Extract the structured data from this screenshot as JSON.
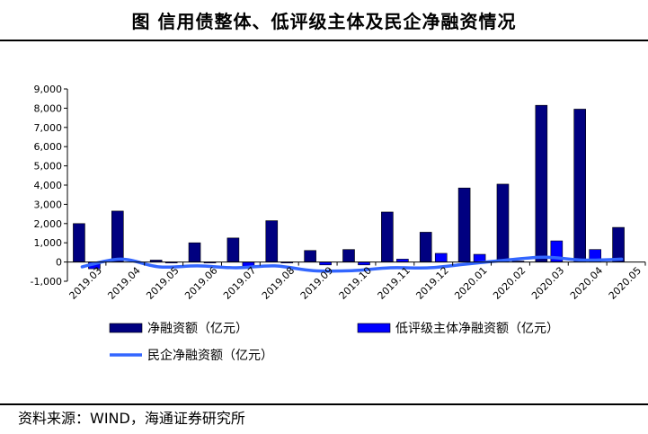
{
  "title": "图  信用债整体、低评级主体及民企净融资情况",
  "source": "资料来源：WIND，海通证券研究所",
  "chart_data": {
    "type": "bar",
    "categories": [
      "2019.03",
      "2019.04",
      "2019.05",
      "2019.06",
      "2019.07",
      "2019.08",
      "2019.09",
      "2019.10",
      "2019.11",
      "2019.12",
      "2020.01",
      "2020.02",
      "2020.03",
      "2020.04",
      "2020.05"
    ],
    "series": [
      {
        "name": "净融资额（亿元）",
        "kind": "bar",
        "color": "#000080",
        "values": [
          2000,
          2650,
          100,
          1000,
          1250,
          2150,
          600,
          650,
          2600,
          1550,
          3850,
          4050,
          8150,
          7950,
          1800
        ]
      },
      {
        "name": "低评级主体净融资额（亿元）",
        "kind": "bar",
        "color": "#0000ff",
        "values": [
          -350,
          0,
          -50,
          -50,
          -300,
          -50,
          -150,
          -150,
          150,
          450,
          400,
          50,
          1100,
          650,
          0
        ]
      },
      {
        "name": "民企净融资额（亿元）",
        "kind": "line",
        "color": "#3366ff",
        "values": [
          -250,
          150,
          -250,
          -200,
          -300,
          -200,
          -450,
          -450,
          -300,
          -300,
          -100,
          100,
          250,
          100,
          150
        ]
      }
    ],
    "y_ticks": [
      "9,000",
      "8,000",
      "7,000",
      "6,000",
      "5,000",
      "4,000",
      "3,000",
      "2,000",
      "1,000",
      "0",
      "-1,000"
    ],
    "ylim": [
      -1000,
      9000
    ],
    "legend_position": "bottom"
  }
}
